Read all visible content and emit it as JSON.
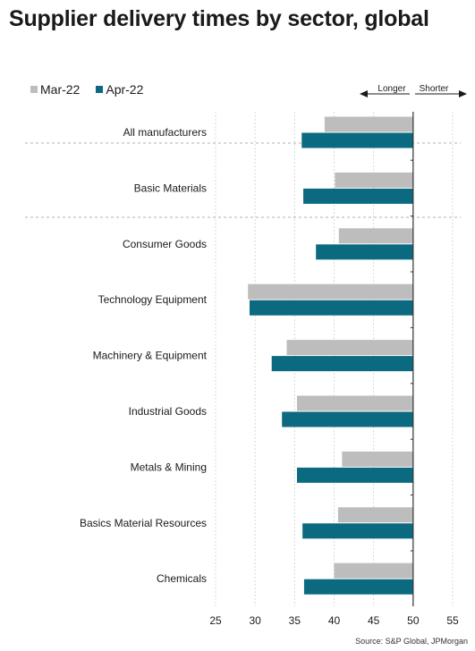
{
  "title": "Supplier delivery times by sector, global",
  "source": "Source: S&P Global, JPMorgan",
  "colors": {
    "series_a": "#bdbdbd",
    "series_b": "#0b6a80",
    "grid": "#d0d0d0",
    "axis": "#333333"
  },
  "annotations": {
    "longer": "Longer",
    "shorter": "Shorter"
  },
  "chart_data": {
    "type": "bar",
    "orientation": "horizontal",
    "title": "Supplier delivery times by sector, global",
    "categories": [
      "All manufacturers",
      "Basic Materials",
      "Consumer Goods",
      "Technology Equipment",
      "Machinery & Equipment",
      "Industrial Goods",
      "Metals & Mining",
      "Basics Material Resources",
      "Chemicals"
    ],
    "series": [
      {
        "name": "Mar-22",
        "values": [
          38.8,
          40.1,
          40.6,
          29.1,
          34.0,
          35.3,
          41.0,
          40.5,
          40.0
        ]
      },
      {
        "name": "Apr-22",
        "values": [
          35.9,
          36.1,
          37.7,
          29.3,
          32.1,
          33.4,
          35.3,
          36.0,
          36.2
        ]
      }
    ],
    "xticks": [
      25,
      30,
      35,
      40,
      45,
      50,
      55
    ],
    "xlim": [
      25,
      55
    ],
    "baseline": 50,
    "grid": true,
    "legend": "top-left"
  }
}
